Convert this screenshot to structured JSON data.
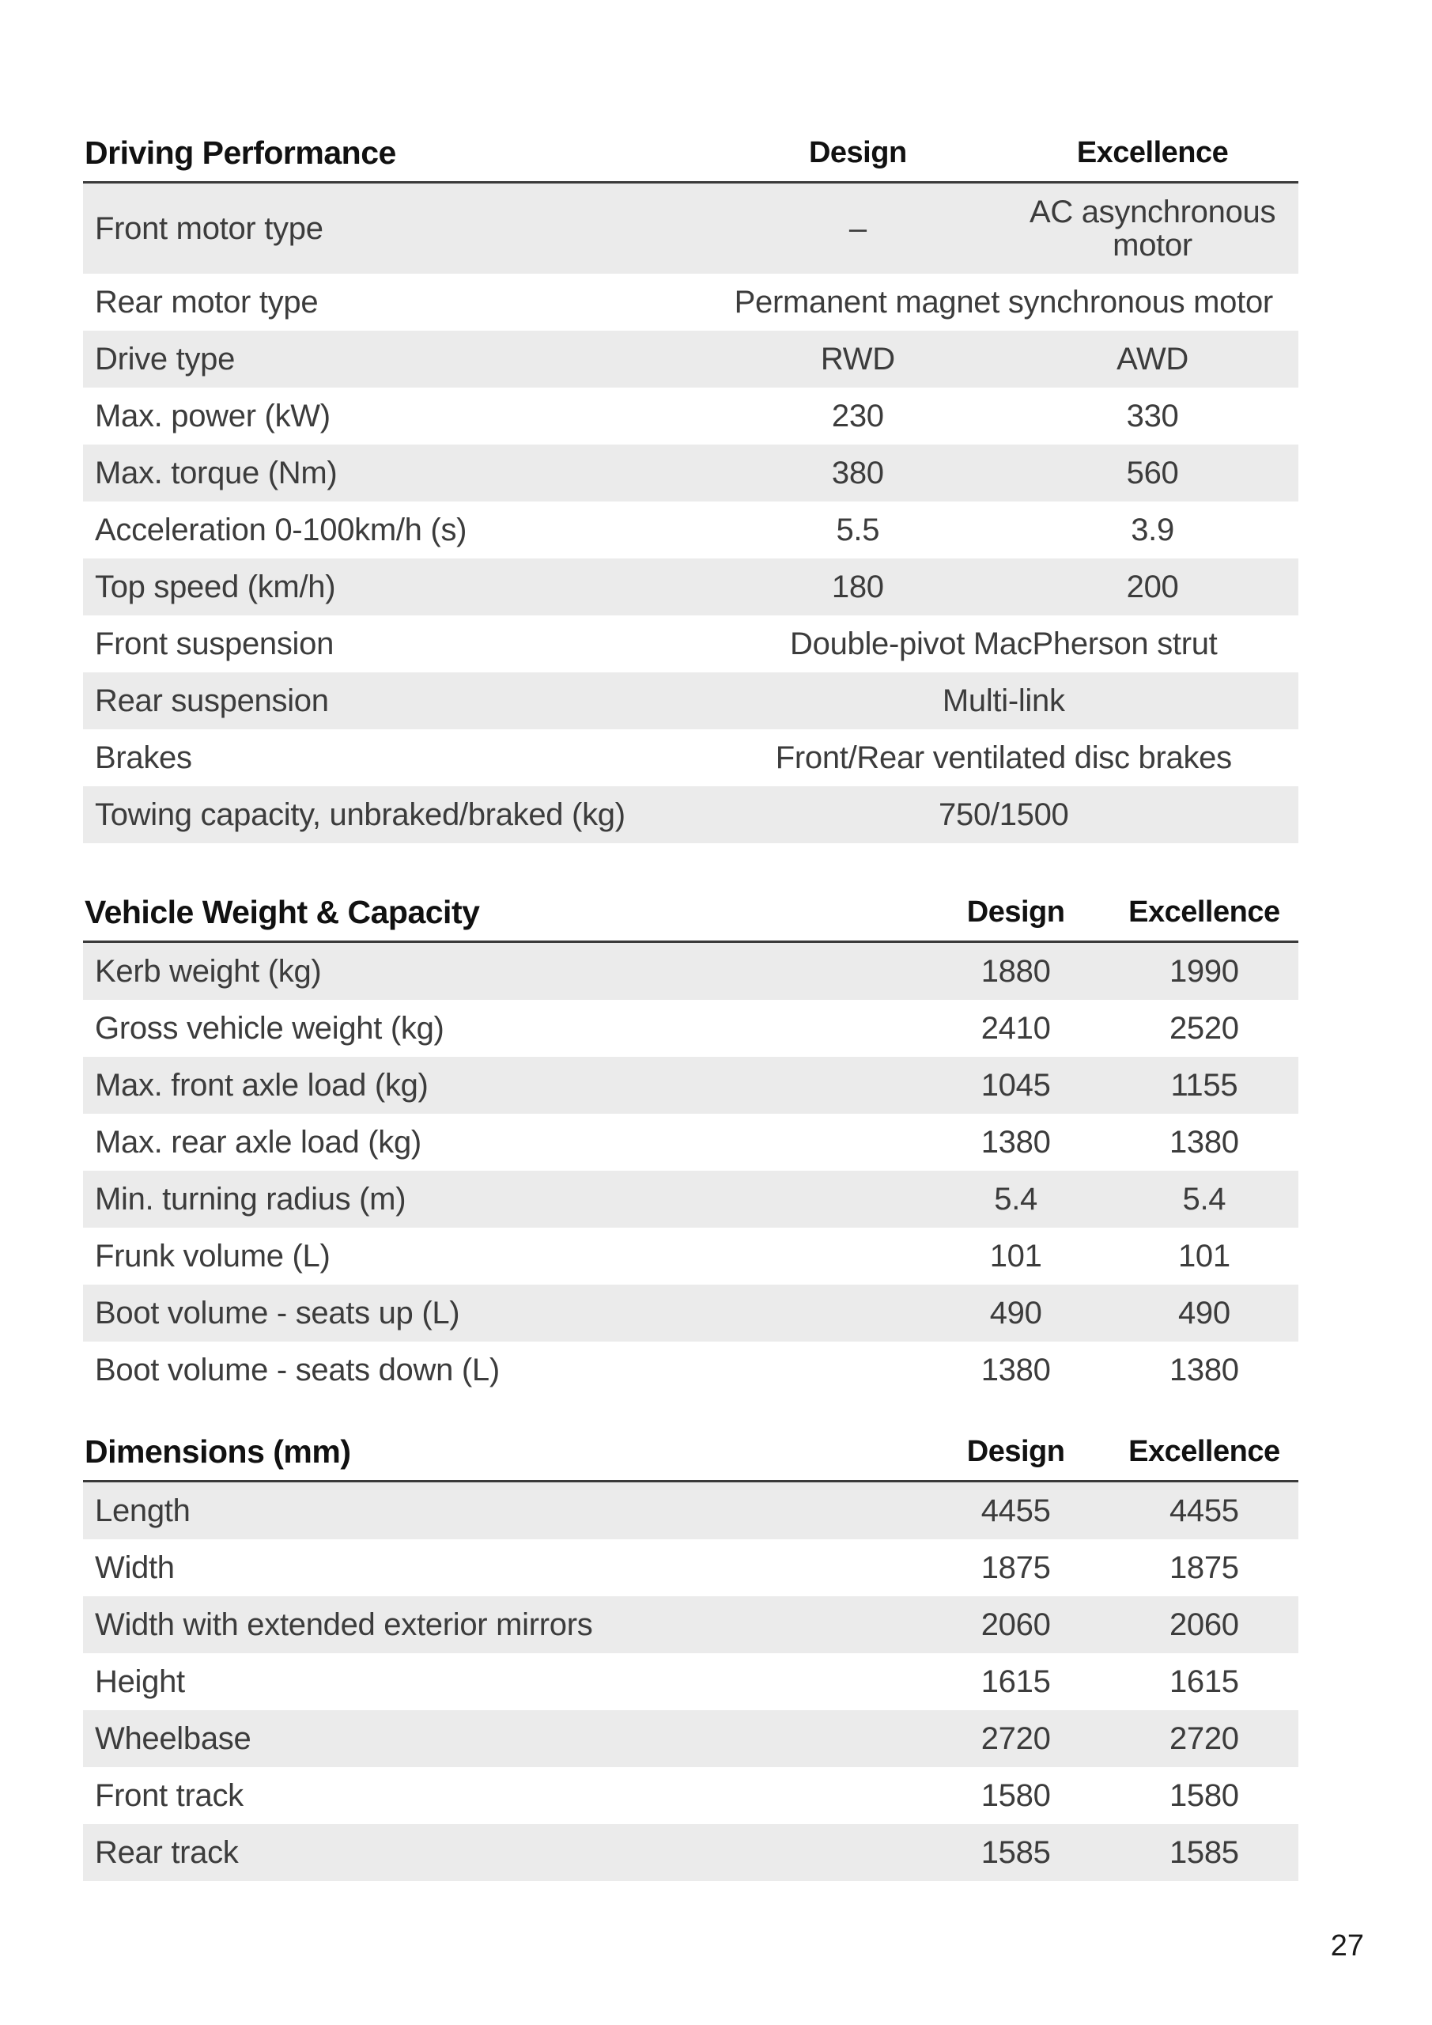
{
  "page": {
    "number": "27"
  },
  "colors": {
    "row_shade": "#ebebeb",
    "rule": "#3a3a3a",
    "body_text": "#3c3c3c",
    "heading_text": "#111111"
  },
  "tables": [
    {
      "title": "Driving Performance",
      "columns": [
        "Design",
        "Excellence"
      ],
      "rows": [
        {
          "label": "Front motor type",
          "design": "–",
          "excellence": "AC asynchronous motor"
        },
        {
          "label": "Rear motor type",
          "span": "Permanent magnet synchronous motor"
        },
        {
          "label": "Drive type",
          "design": "RWD",
          "excellence": "AWD"
        },
        {
          "label": "Max. power (kW)",
          "design": "230",
          "excellence": "330"
        },
        {
          "label": "Max. torque (Nm)",
          "design": "380",
          "excellence": "560"
        },
        {
          "label": "Acceleration 0-100km/h (s)",
          "design": "5.5",
          "excellence": "3.9"
        },
        {
          "label": "Top speed (km/h)",
          "design": "180",
          "excellence": "200"
        },
        {
          "label": "Front suspension",
          "span": "Double-pivot MacPherson strut"
        },
        {
          "label": "Rear suspension",
          "span": "Multi-link"
        },
        {
          "label": "Brakes",
          "span": "Front/Rear ventilated disc brakes"
        },
        {
          "label": "Towing capacity, unbraked/braked (kg)",
          "span": "750/1500"
        }
      ]
    },
    {
      "title": "Vehicle Weight & Capacity",
      "columns": [
        "Design",
        "Excellence"
      ],
      "rows": [
        {
          "label": "Kerb weight (kg)",
          "design": "1880",
          "excellence": "1990"
        },
        {
          "label": "Gross vehicle weight (kg)",
          "design": "2410",
          "excellence": "2520"
        },
        {
          "label": "Max. front axle load (kg)",
          "design": "1045",
          "excellence": "1155"
        },
        {
          "label": "Max. rear axle load (kg)",
          "design": "1380",
          "excellence": "1380"
        },
        {
          "label": "Min. turning radius (m)",
          "design": "5.4",
          "excellence": "5.4"
        },
        {
          "label": "Frunk volume (L)",
          "design": "101",
          "excellence": "101"
        },
        {
          "label": "Boot volume - seats up (L)",
          "design": "490",
          "excellence": "490"
        },
        {
          "label": "Boot volume - seats down (L)",
          "design": "1380",
          "excellence": "1380"
        }
      ]
    },
    {
      "title": "Dimensions (mm)",
      "columns": [
        "Design",
        "Excellence"
      ],
      "rows": [
        {
          "label": "Length",
          "design": "4455",
          "excellence": "4455"
        },
        {
          "label": "Width",
          "design": "1875",
          "excellence": "1875"
        },
        {
          "label": "Width with extended exterior mirrors",
          "design": "2060",
          "excellence": "2060"
        },
        {
          "label": "Height",
          "design": "1615",
          "excellence": "1615"
        },
        {
          "label": "Wheelbase",
          "design": "2720",
          "excellence": "2720"
        },
        {
          "label": "Front track",
          "design": "1580",
          "excellence": "1580"
        },
        {
          "label": "Rear track",
          "design": "1585",
          "excellence": "1585"
        }
      ]
    }
  ]
}
